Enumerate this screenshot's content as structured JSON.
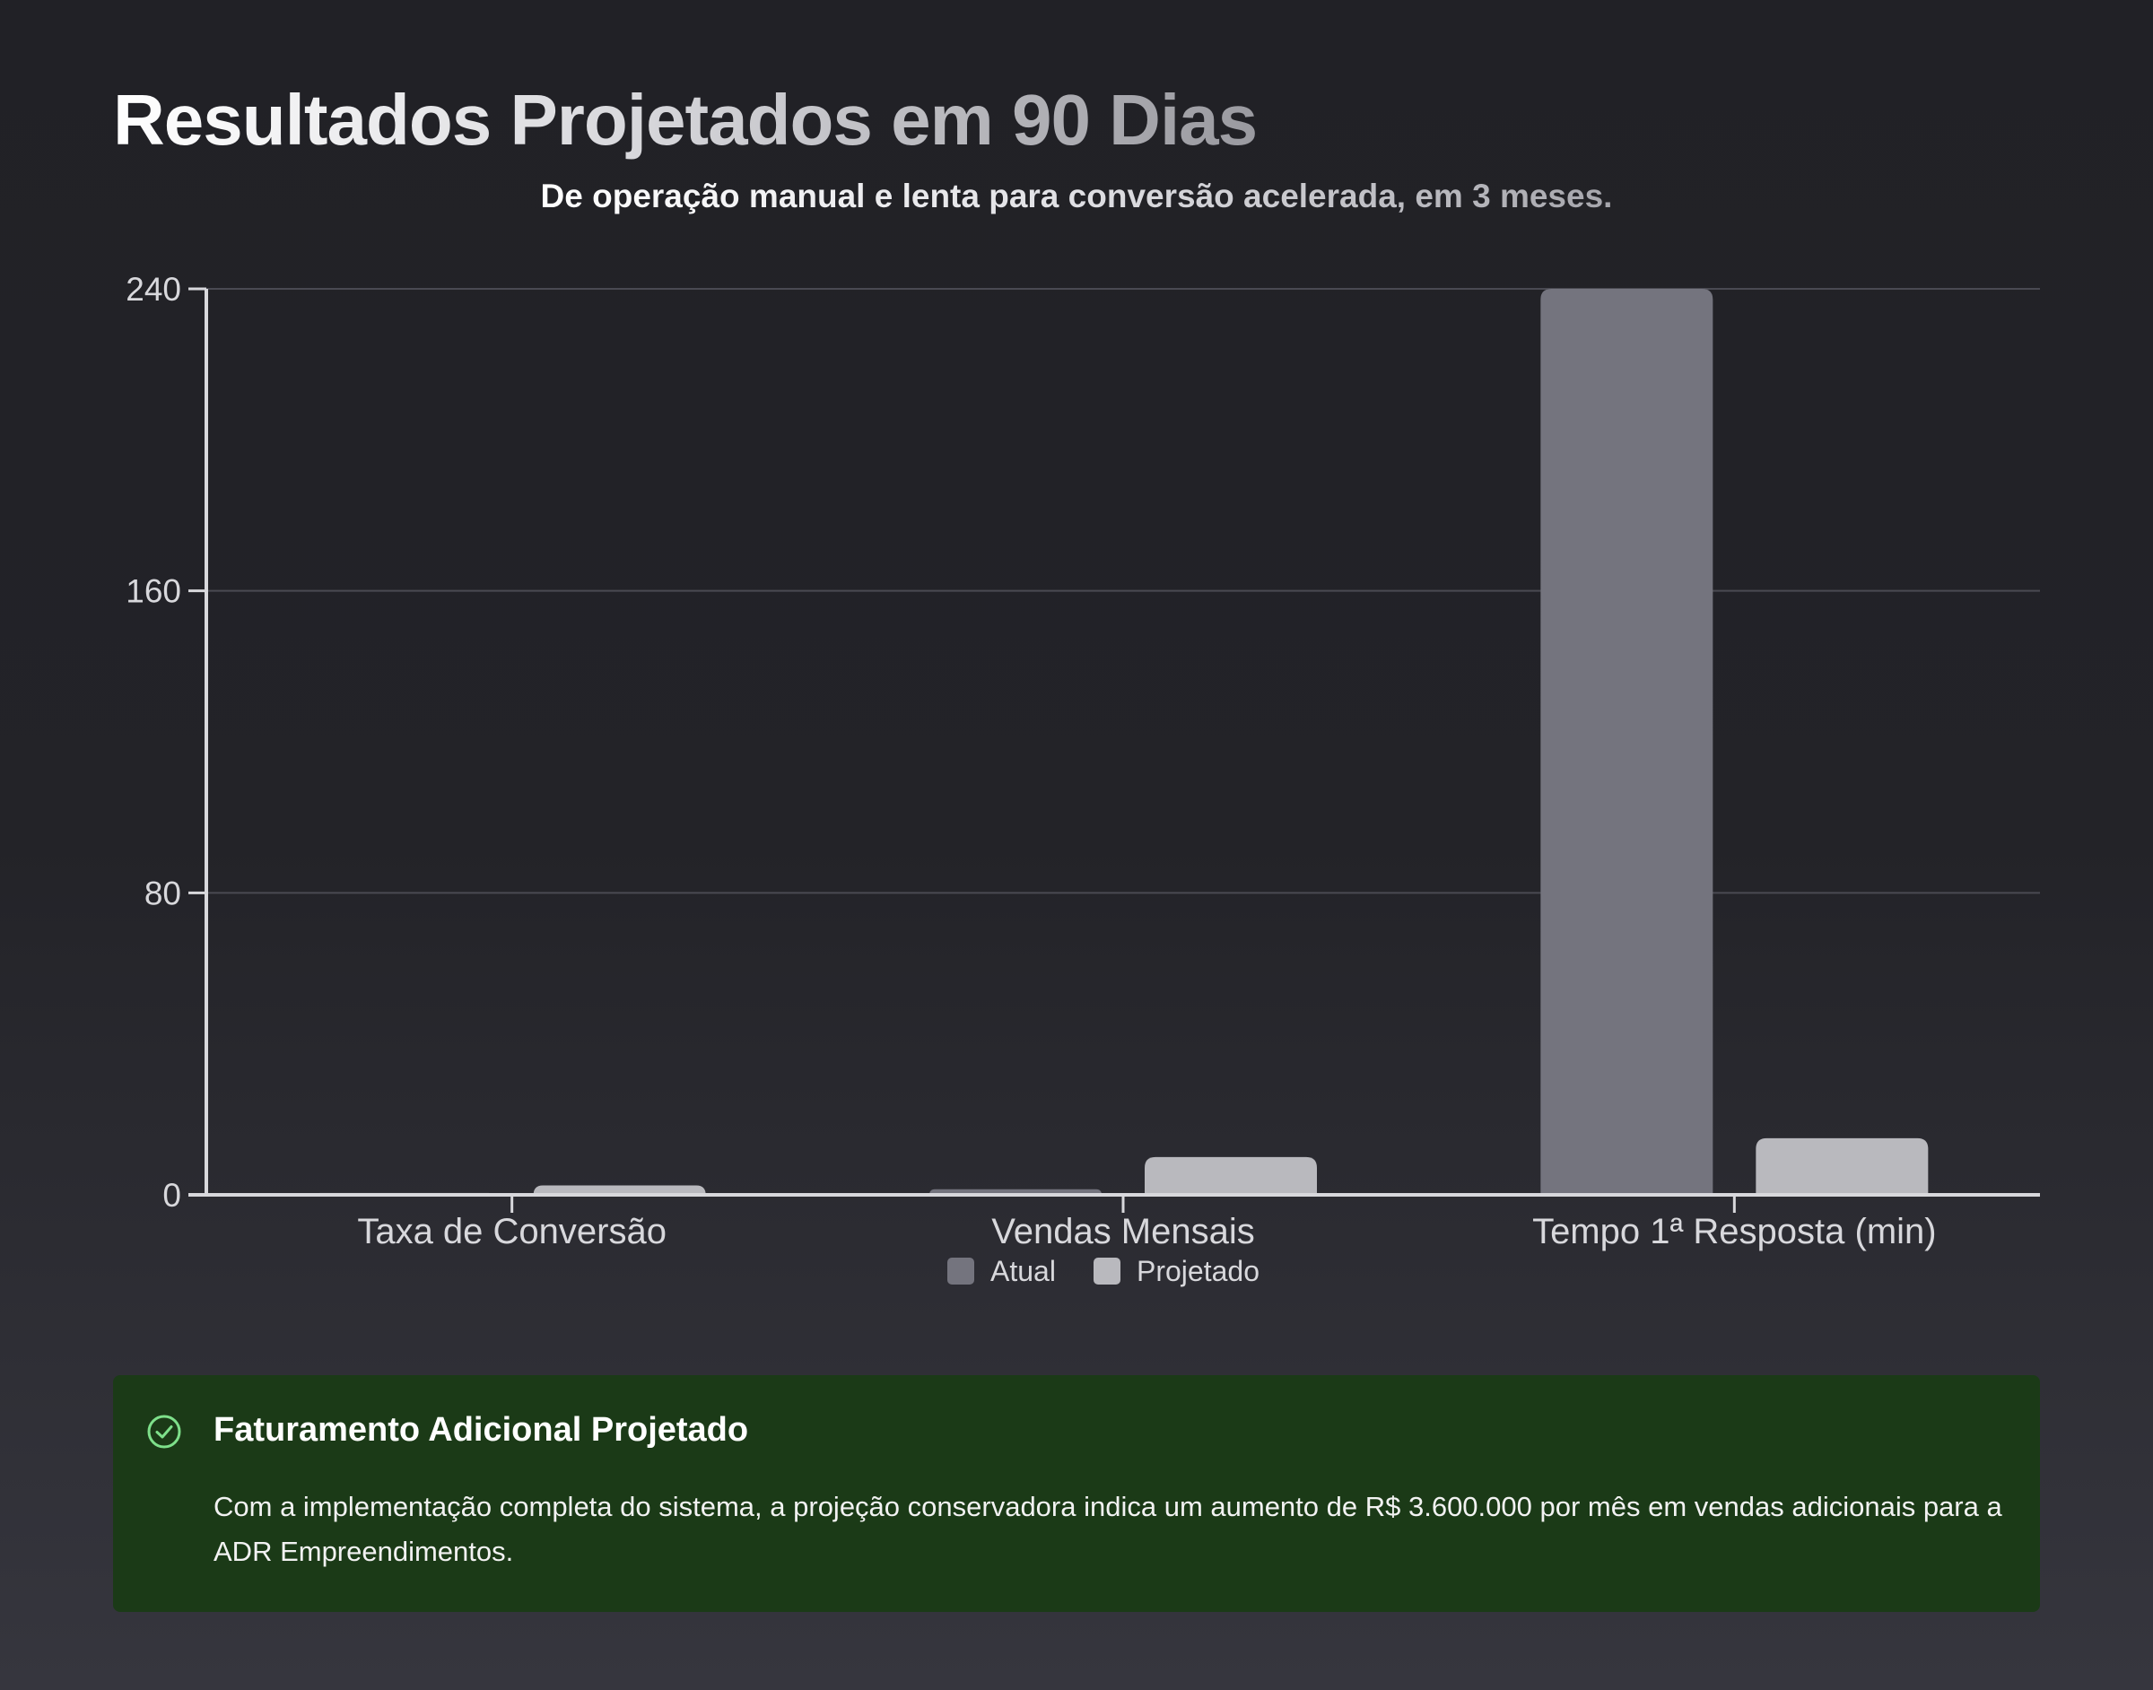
{
  "title": "Resultados Projetados em 90 Dias",
  "subtitle": "De operação manual e lenta para conversão acelerada, em 3 meses.",
  "chart_data": {
    "type": "bar",
    "categories": [
      "Taxa de Conversão",
      "Vendas Mensais",
      "Tempo 1ª Resposta (min)"
    ],
    "series": [
      {
        "name": "Atual",
        "color": "#74747e",
        "values": [
          0.5,
          1.5,
          240
        ]
      },
      {
        "name": "Projetado",
        "color": "#b9b9be",
        "values": [
          2.5,
          10,
          15
        ]
      }
    ],
    "ylim": [
      0,
      240
    ],
    "yticks": [
      "0",
      "80",
      "160",
      "240"
    ],
    "grid": true,
    "legend": "bottom"
  },
  "callout": {
    "icon": "check-circle-icon",
    "accent": "#7ee08a",
    "title": "Faturamento Adicional Projetado",
    "body": "Com a implementação completa do sistema, a projeção conservadora indica um aumento de R$ 3.600.000 por mês em vendas adicionais para a ADR Empreendimentos."
  }
}
